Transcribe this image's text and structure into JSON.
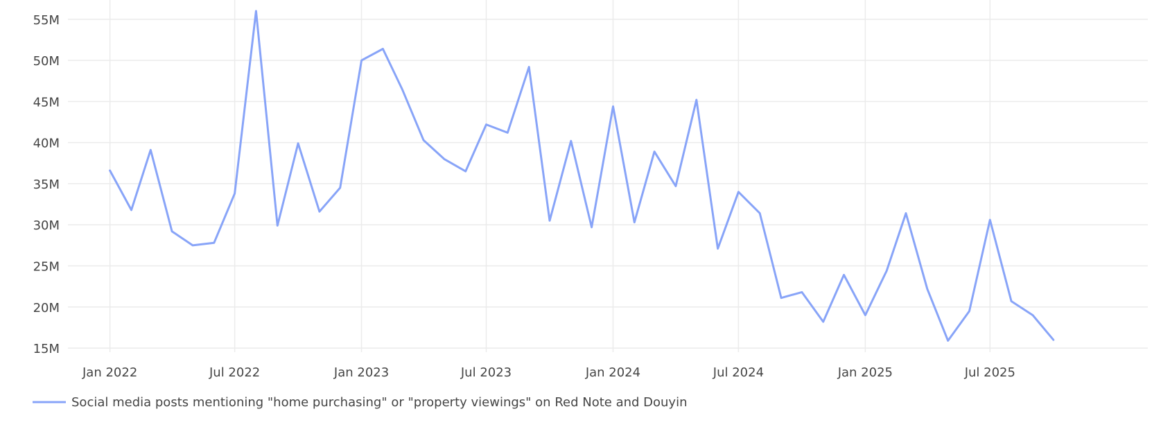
{
  "chart_data": {
    "type": "line",
    "title": "",
    "xlabel": "",
    "ylabel": "",
    "grid": true,
    "legend_position": "bottom-left",
    "line_color": "#88a4f8",
    "x_tick_labels": [
      "Jan 2022",
      "Jul 2022",
      "Jan 2023",
      "Jul 2023",
      "Jan 2024",
      "Jul 2024",
      "Jan 2025",
      "Jul 2025"
    ],
    "y_tick_labels": [
      "15M",
      "20M",
      "25M",
      "30M",
      "35M",
      "40M",
      "45M",
      "50M",
      "55M"
    ],
    "y_ticks": [
      15,
      20,
      25,
      30,
      35,
      40,
      45,
      50,
      55
    ],
    "ylim": [
      14.5,
      56.5
    ],
    "xlim": [
      "2021-11-01",
      "2026-02-15"
    ],
    "series": [
      {
        "name": "Social media posts mentioning \"home purchasing\" or \"property viewings\" on Red Note and Douyin",
        "x": [
          "2022-01",
          "2022-02",
          "2022-03",
          "2022-04",
          "2022-05",
          "2022-06",
          "2022-07",
          "2022-08",
          "2022-09",
          "2022-10",
          "2022-11",
          "2022-12",
          "2023-01",
          "2023-02",
          "2023-03",
          "2023-04",
          "2023-05",
          "2023-06",
          "2023-07",
          "2023-08",
          "2023-09",
          "2023-10",
          "2023-11",
          "2023-12",
          "2024-01",
          "2024-02",
          "2024-03",
          "2024-04",
          "2024-05",
          "2024-06",
          "2024-07",
          "2024-08",
          "2024-09",
          "2024-10",
          "2024-11",
          "2024-12",
          "2025-01",
          "2025-02",
          "2025-03",
          "2025-04",
          "2025-05",
          "2025-06",
          "2025-07",
          "2025-08",
          "2025-09",
          "2025-10"
        ],
        "values": [
          36.6,
          31.8,
          39.1,
          29.2,
          27.5,
          27.8,
          33.8,
          56.0,
          29.9,
          39.9,
          31.6,
          34.5,
          50.0,
          51.4,
          46.5,
          40.3,
          38.0,
          36.5,
          42.2,
          41.2,
          49.2,
          30.5,
          40.2,
          29.7,
          44.4,
          30.3,
          38.9,
          34.7,
          45.2,
          27.1,
          34.0,
          31.4,
          21.1,
          21.8,
          18.2,
          23.9,
          19.0,
          24.4,
          31.4,
          22.2,
          15.9,
          19.5,
          30.6,
          20.7,
          19.0,
          16.0
        ]
      }
    ]
  }
}
